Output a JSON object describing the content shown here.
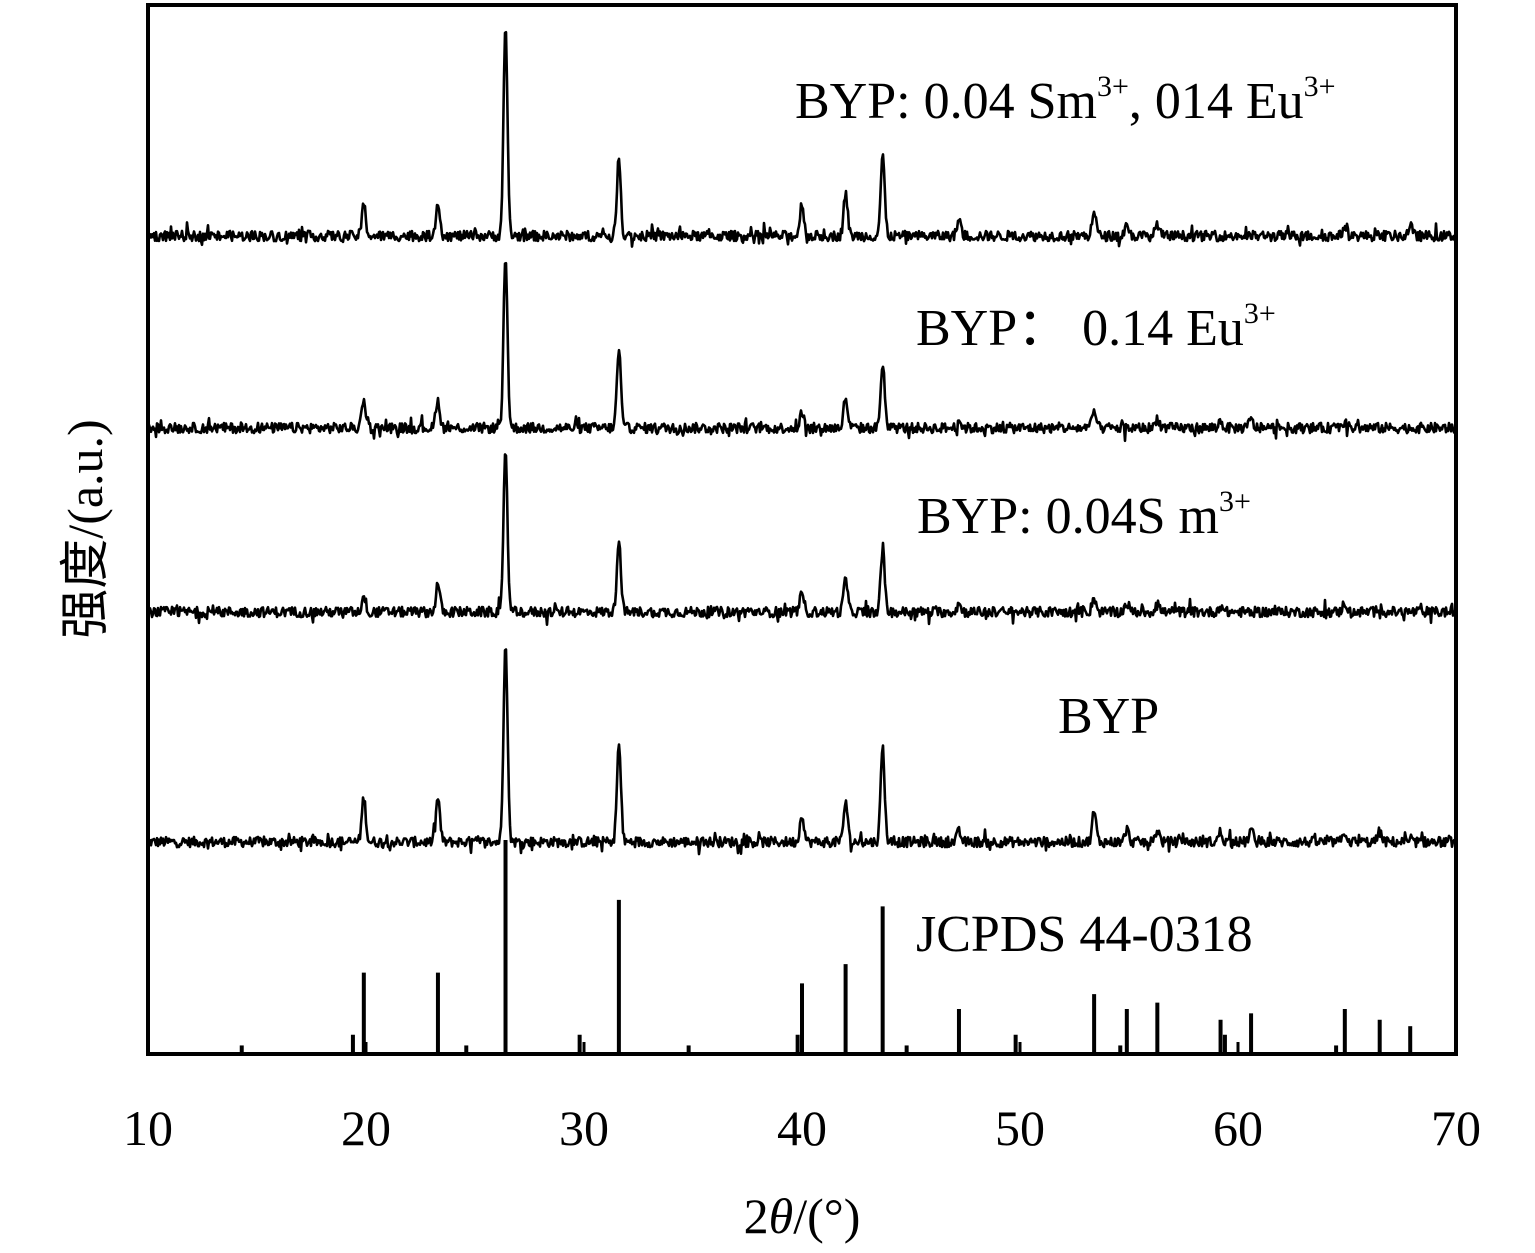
{
  "chart_data": {
    "type": "line",
    "xlabel_parts": {
      "a": "2",
      "theta": "θ",
      "b": "/(°)"
    },
    "ylabel": "强度/(a.u.)",
    "xlim": [
      10,
      70
    ],
    "xticks": [
      "10",
      "20",
      "30",
      "40",
      "50",
      "60",
      "70"
    ],
    "reference": {
      "label": "JCPDS 44-0318",
      "peaks": [
        [
          14.3,
          4
        ],
        [
          19.4,
          9
        ],
        [
          19.9,
          38
        ],
        [
          23.3,
          38
        ],
        [
          24.6,
          4
        ],
        [
          26.4,
          100
        ],
        [
          29.8,
          9
        ],
        [
          31.6,
          72
        ],
        [
          34.8,
          4
        ],
        [
          39.8,
          9
        ],
        [
          40.0,
          33
        ],
        [
          42.0,
          42
        ],
        [
          43.7,
          69
        ],
        [
          44.8,
          4
        ],
        [
          47.2,
          21
        ],
        [
          49.8,
          9
        ],
        [
          53.4,
          28
        ],
        [
          54.6,
          4
        ],
        [
          54.9,
          21
        ],
        [
          56.3,
          24
        ],
        [
          59.2,
          16
        ],
        [
          59.4,
          9
        ],
        [
          60.6,
          19
        ],
        [
          64.5,
          4
        ],
        [
          64.9,
          21
        ],
        [
          66.5,
          16
        ],
        [
          67.9,
          13
        ]
      ]
    },
    "peak_positions": [
      19.9,
      23.3,
      26.4,
      31.6,
      40.0,
      42.0,
      43.7,
      47.2,
      53.4,
      54.9,
      56.3,
      59.2,
      60.6,
      64.9,
      66.5,
      67.9
    ],
    "series": [
      {
        "name": "BYP",
        "label_text": "BYP",
        "sup": "",
        "peaks": [
          [
            19.9,
            22
          ],
          [
            23.3,
            22
          ],
          [
            26.4,
            100
          ],
          [
            31.6,
            48
          ],
          [
            40.0,
            14
          ],
          [
            42.0,
            20
          ],
          [
            43.7,
            47
          ],
          [
            47.2,
            5
          ],
          [
            53.4,
            15
          ],
          [
            54.9,
            6
          ],
          [
            56.3,
            6
          ],
          [
            59.2,
            5
          ],
          [
            60.6,
            6
          ],
          [
            64.9,
            5
          ],
          [
            66.5,
            5
          ]
        ]
      },
      {
        "name": "BYP: 0.04S m3+",
        "label_text": "BYP: 0.04S m",
        "sup": "3+",
        "peaks": [
          [
            19.9,
            10
          ],
          [
            23.3,
            18
          ],
          [
            26.4,
            100
          ],
          [
            31.6,
            47
          ],
          [
            40.0,
            12
          ],
          [
            42.0,
            21
          ],
          [
            43.7,
            39
          ],
          [
            47.2,
            5
          ],
          [
            53.4,
            9
          ],
          [
            54.9,
            6
          ],
          [
            56.3,
            6
          ],
          [
            59.2,
            4
          ],
          [
            64.9,
            6
          ],
          [
            66.5,
            4
          ]
        ]
      },
      {
        "name": "BYP: 0.14 Eu3+",
        "label_text": "BYP： 0.14 Eu",
        "sup": "3+",
        "peaks": [
          [
            19.9,
            17
          ],
          [
            23.3,
            16
          ],
          [
            26.4,
            100
          ],
          [
            31.6,
            46
          ],
          [
            40.0,
            9
          ],
          [
            42.0,
            18
          ],
          [
            43.7,
            38
          ],
          [
            47.2,
            5
          ],
          [
            53.4,
            10
          ],
          [
            56.3,
            6
          ],
          [
            59.2,
            4
          ],
          [
            60.6,
            5
          ],
          [
            64.9,
            4
          ]
        ]
      },
      {
        "name": "BYP: 0.04 Sm3+, 014 Eu3+",
        "label_text_1": "BYP: 0.04 Sm",
        "sup_1": "3+",
        "label_text_2": ", 014 Eu",
        "sup_2": "3+",
        "peaks": [
          [
            19.9,
            15
          ],
          [
            23.3,
            17
          ],
          [
            26.4,
            100
          ],
          [
            31.6,
            38
          ],
          [
            40.0,
            16
          ],
          [
            42.0,
            21
          ],
          [
            43.7,
            39
          ],
          [
            47.2,
            8
          ],
          [
            53.4,
            12
          ],
          [
            54.9,
            6
          ],
          [
            56.3,
            6
          ],
          [
            64.9,
            5
          ],
          [
            67.9,
            5
          ]
        ]
      }
    ]
  }
}
